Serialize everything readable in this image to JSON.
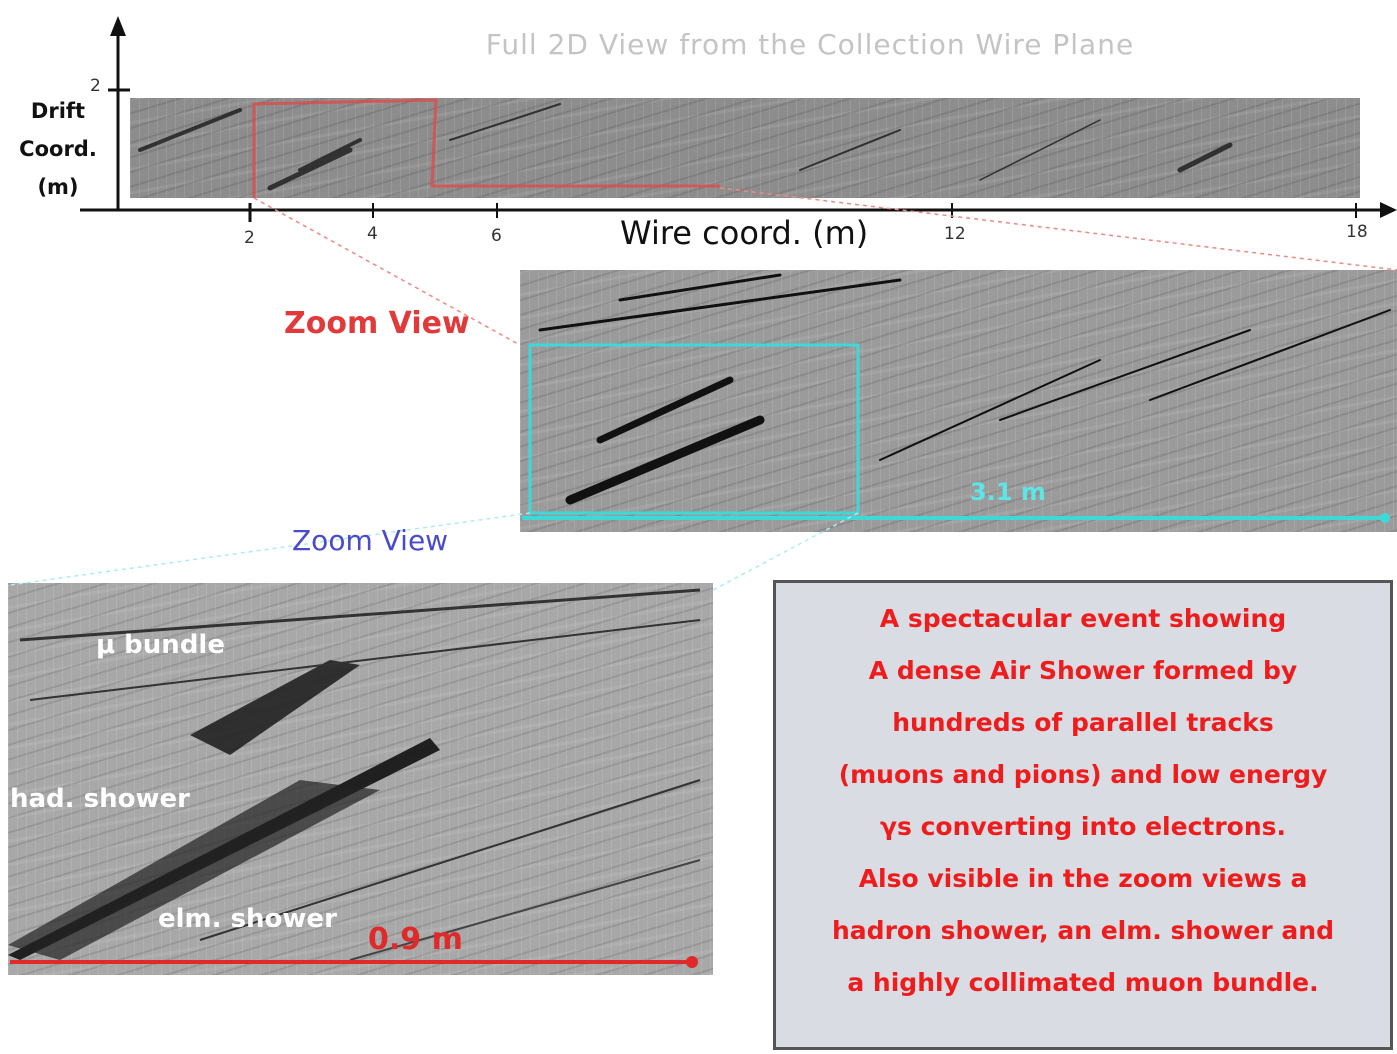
{
  "title": "Full 2D View from the Collection Wire Plane",
  "axes": {
    "y_label_lines": [
      "Drift",
      "Coord.",
      "(m)"
    ],
    "y_tick": "2",
    "x_label": "Wire coord. (m)",
    "x_ticks": [
      "2",
      "4",
      "6",
      "12",
      "18"
    ]
  },
  "zoom_labels": {
    "first": "Zoom View",
    "second": "Zoom View"
  },
  "scale_bars": {
    "first": "3.1 m",
    "second": "0.9 m"
  },
  "shower_labels": {
    "muon_bundle": "μ bundle",
    "hadron_shower": "had. shower",
    "elm_shower": "elm. shower"
  },
  "description_lines": [
    "A spectacular event showing",
    "A dense Air Shower formed by",
    "hundreds of parallel tracks",
    "(muons and pions) and low energy",
    "γs converting into electrons.",
    "Also visible in the zoom views a",
    "hadron shower, an elm. shower and",
    "a highly collimated muon bundle."
  ],
  "colors": {
    "zoom1_frame": "#e04a4a",
    "zoom2_frame": "#3fd8d8",
    "red_text": "#ee1c1c",
    "blue_text": "#4a4acc"
  }
}
